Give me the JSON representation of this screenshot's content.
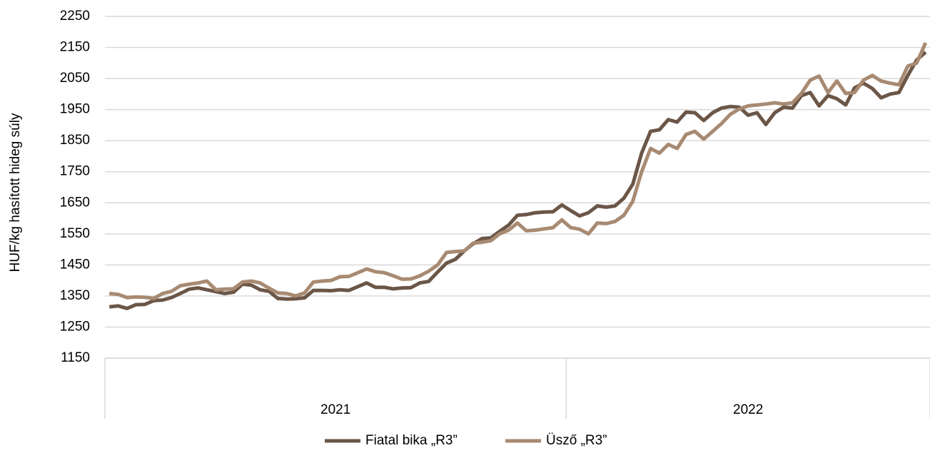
{
  "chart_data": {
    "type": "line",
    "y_label": "HUF/kg hasított hideg súly",
    "categories": [
      null,
      null,
      null,
      null,
      null,
      null,
      null,
      null,
      null,
      null,
      null,
      null,
      null,
      null,
      null,
      null,
      null,
      null,
      null,
      null,
      null,
      null,
      null,
      null,
      null,
      null,
      null,
      null,
      null,
      null,
      null,
      null,
      null,
      null,
      null,
      null,
      null,
      null,
      null,
      null,
      null,
      null,
      null,
      null,
      null,
      null,
      null,
      null,
      null,
      null,
      null,
      null,
      null,
      null,
      null,
      null,
      null,
      null,
      null,
      null,
      null,
      null,
      null,
      null,
      null,
      null,
      null,
      null,
      null,
      null,
      null,
      null,
      null,
      null,
      null,
      null,
      null,
      null,
      null,
      null,
      null,
      null,
      null,
      null,
      null,
      null,
      null,
      null,
      null,
      null,
      null,
      null,
      null
    ],
    "x_groups": [
      {
        "label": "2021",
        "count": 52
      },
      {
        "label": "2022",
        "count": 41
      }
    ],
    "series": [
      {
        "name": "Fiatal bika „R3”",
        "color": "#6b5647",
        "values": [
          1315,
          1318,
          1310,
          1322,
          1323,
          1335,
          1337,
          1345,
          1358,
          1372,
          1376,
          1370,
          1364,
          1358,
          1362,
          1388,
          1385,
          1370,
          1365,
          1342,
          1340,
          1341,
          1344,
          1368,
          1368,
          1367,
          1370,
          1368,
          1380,
          1392,
          1378,
          1378,
          1373,
          1376,
          1377,
          1392,
          1397,
          1427,
          1456,
          1468,
          1495,
          1518,
          1535,
          1537,
          1558,
          1578,
          1610,
          1612,
          1618,
          1620,
          1621,
          1643,
          1625,
          1608,
          1618,
          1640,
          1636,
          1640,
          1665,
          1710,
          1810,
          1880,
          1885,
          1918,
          1910,
          1942,
          1940,
          1915,
          1940,
          1955,
          1960,
          1958,
          1932,
          1940,
          1902,
          1940,
          1958,
          1955,
          1995,
          2005,
          1962,
          1995,
          1985,
          1965,
          2020,
          2035,
          2018,
          1988,
          2000,
          2005,
          2060,
          2110,
          2135
        ]
      },
      {
        "name": "Üsző „R3”",
        "color": "#a88a72",
        "values": [
          1358,
          1355,
          1345,
          1347,
          1346,
          1342,
          1358,
          1365,
          1383,
          1388,
          1392,
          1398,
          1370,
          1372,
          1373,
          1395,
          1398,
          1392,
          1375,
          1360,
          1358,
          1350,
          1360,
          1395,
          1398,
          1400,
          1412,
          1413,
          1425,
          1437,
          1428,
          1425,
          1415,
          1404,
          1405,
          1415,
          1430,
          1450,
          1490,
          1493,
          1495,
          1520,
          1523,
          1528,
          1550,
          1562,
          1585,
          1560,
          1562,
          1566,
          1570,
          1595,
          1570,
          1565,
          1550,
          1585,
          1583,
          1590,
          1610,
          1655,
          1750,
          1825,
          1810,
          1838,
          1825,
          1870,
          1880,
          1855,
          1880,
          1905,
          1935,
          1952,
          1962,
          1965,
          1968,
          1972,
          1968,
          1972,
          2002,
          2045,
          2058,
          2005,
          2042,
          2002,
          2005,
          2045,
          2060,
          2042,
          2035,
          2030,
          2090,
          2100,
          2165
        ]
      }
    ],
    "ylim": [
      1150,
      2250
    ],
    "yticks": [
      1150,
      1250,
      1350,
      1450,
      1550,
      1650,
      1750,
      1850,
      1950,
      2050,
      2150,
      2250
    ],
    "grid": true
  }
}
